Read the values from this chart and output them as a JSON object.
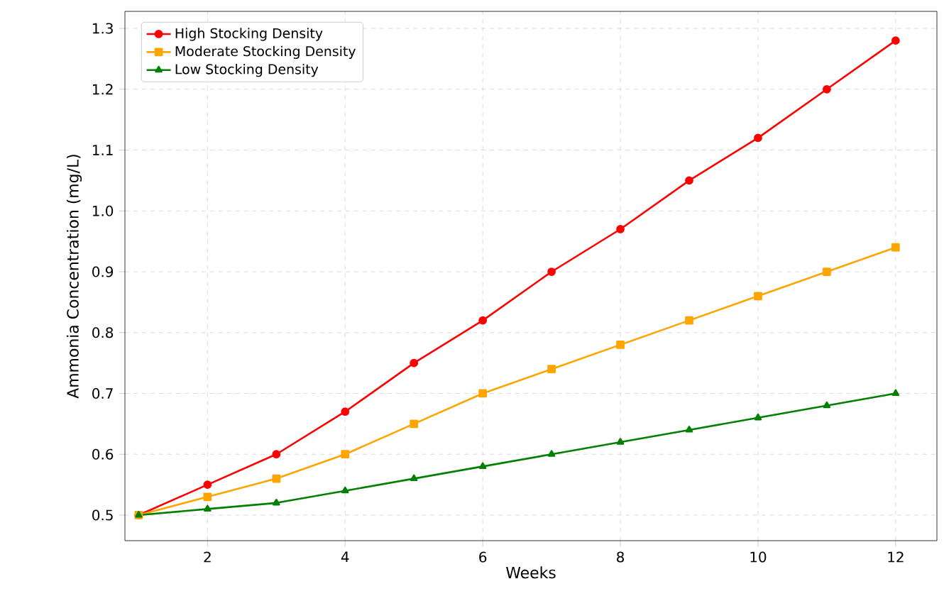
{
  "chart_data": {
    "type": "line",
    "xlabel": "Weeks",
    "ylabel": "Ammonia Concentration (mg/L)",
    "x": [
      1,
      2,
      3,
      4,
      5,
      6,
      7,
      8,
      9,
      10,
      11,
      12
    ],
    "series": [
      {
        "name": "High Stocking Density",
        "color": "#ff0000",
        "marker": "circle",
        "values": [
          0.5,
          0.55,
          0.6,
          0.67,
          0.75,
          0.82,
          0.9,
          0.97,
          1.05,
          1.12,
          1.2,
          1.28
        ]
      },
      {
        "name": "Moderate Stocking Density",
        "color": "#ffa500",
        "marker": "square",
        "values": [
          0.5,
          0.53,
          0.56,
          0.6,
          0.65,
          0.7,
          0.74,
          0.78,
          0.82,
          0.86,
          0.9,
          0.94
        ]
      },
      {
        "name": "Low Stocking Density",
        "color": "#008000",
        "marker": "triangle",
        "values": [
          0.5,
          0.51,
          0.52,
          0.54,
          0.56,
          0.58,
          0.6,
          0.62,
          0.64,
          0.66,
          0.68,
          0.7
        ]
      }
    ],
    "xlim": [
      0.8,
      12.6
    ],
    "ylim": [
      0.458,
      1.328
    ],
    "xticks": [
      2,
      4,
      6,
      8,
      10,
      12
    ],
    "yticks": [
      0.5,
      0.6,
      0.7,
      0.8,
      0.9,
      {
        "value": 1,
        "label": "1.0"
      },
      1.1,
      1.2,
      1.3
    ],
    "grid": true,
    "line_style": "solid",
    "legend": "top left"
  }
}
